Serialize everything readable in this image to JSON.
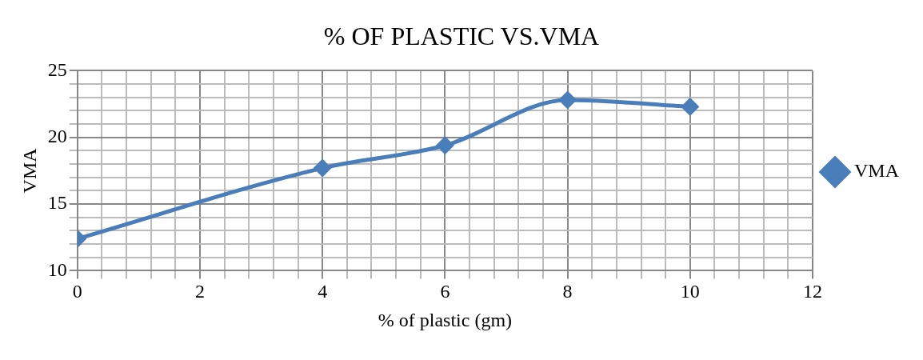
{
  "chart_data": {
    "type": "line",
    "title": "% OF PLASTIC VS.VMA",
    "xlabel": "% of plastic (gm)",
    "ylabel": "VMA",
    "x": [
      0,
      4,
      6,
      8,
      10
    ],
    "series": [
      {
        "name": "VMA",
        "color": "#4a7ebb",
        "values": [
          12.4,
          17.7,
          19.4,
          22.8,
          22.3
        ]
      }
    ],
    "xlim": [
      0,
      12
    ],
    "xticks": [
      0,
      {
        "value": 0.4,
        "label": null
      },
      {
        "value": 0.8,
        "label": null
      },
      {
        "value": 1.2,
        "label": null
      },
      {
        "value": 1.6,
        "label": null
      },
      2,
      {
        "value": 2.4,
        "label": null
      },
      {
        "value": 2.8,
        "label": null
      },
      {
        "value": 3.2,
        "label": null
      },
      {
        "value": 3.6,
        "label": null
      },
      4,
      {
        "value": 4.4,
        "label": null
      },
      {
        "value": 4.8,
        "label": null
      },
      {
        "value": 5.2,
        "label": null
      },
      {
        "value": 5.6,
        "label": null
      },
      6,
      {
        "value": 6.4,
        "label": null
      },
      {
        "value": 6.8,
        "label": null
      },
      {
        "value": 7.2,
        "label": null
      },
      {
        "value": 7.6,
        "label": null
      },
      8,
      {
        "value": 8.4,
        "label": null
      },
      {
        "value": 8.8,
        "label": null
      },
      {
        "value": 9.2,
        "label": null
      },
      {
        "value": 9.6,
        "label": null
      },
      10,
      {
        "value": 10.4,
        "label": null
      },
      {
        "value": 10.8,
        "label": null
      },
      {
        "value": 11.2,
        "label": null
      },
      {
        "value": 11.6,
        "label": null
      },
      12
    ],
    "ylim": [
      10,
      25
    ],
    "yticks": [
      10,
      {
        "value": 11,
        "label": null
      },
      {
        "value": 12,
        "label": null
      },
      {
        "value": 13,
        "label": null
      },
      {
        "value": 14,
        "label": null
      },
      15,
      {
        "value": 16,
        "label": null
      },
      {
        "value": 17,
        "label": null
      },
      {
        "value": 18,
        "label": null
      },
      {
        "value": 19,
        "label": null
      },
      20,
      {
        "value": 21,
        "label": null
      },
      {
        "value": 22,
        "label": null
      },
      {
        "value": 23,
        "label": null
      },
      {
        "value": 24,
        "label": null
      },
      25
    ],
    "grid": true,
    "legend": "right",
    "marker": "diamond",
    "line_style": "solid"
  }
}
